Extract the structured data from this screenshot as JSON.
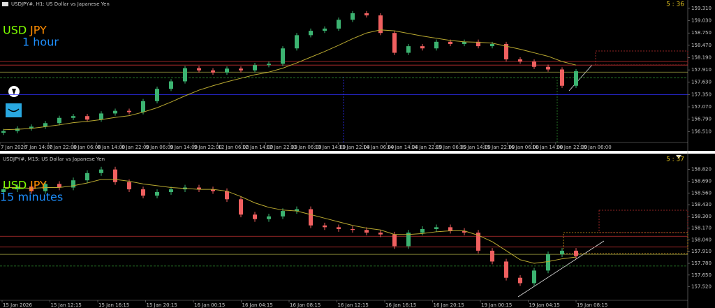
{
  "chart_data": [
    {
      "type": "candlestick",
      "title": "USDJPY#, H1:  US Dollar vs Japanese Yen",
      "timer": "5 : 36",
      "symbol_base": "USD",
      "symbol_quote": "JPY",
      "timeframe_label": "1 hour",
      "up_color": "#3cb371",
      "down_color": "#f06060",
      "ma_color": "#b8a830",
      "x_labels": [
        "7 Jan 2026",
        "7 Jan 14:00",
        "7 Jan 22:00",
        "8 Jan 06:00",
        "8 Jan 14:00",
        "8 Jan 22:00",
        "9 Jan 06:00",
        "9 Jan 14:00",
        "9 Jan 22:00",
        "12 Jan 06:00",
        "12 Jan 14:00",
        "12 Jan 22:00",
        "13 Jan 06:00",
        "13 Jan 14:00",
        "13 Jan 22:00",
        "14 Jan 06:00",
        "14 Jan 14:00",
        "14 Jan 22:00",
        "15 Jan 06:00",
        "15 Jan 14:00",
        "15 Jan 22:00",
        "16 Jan 06:00",
        "16 Jan 14:00",
        "16 Jan 22:00",
        "19 Jan 06:00"
      ],
      "open": [
        156.48,
        156.52,
        156.58,
        156.62,
        156.7,
        156.82,
        156.86,
        156.78,
        156.92,
        156.98,
        156.95,
        157.2,
        157.48,
        157.65,
        157.95,
        157.9,
        157.85,
        157.94,
        157.9,
        158.02,
        158.05,
        158.4,
        158.7,
        158.8,
        158.85,
        159.05,
        159.2,
        159.15,
        158.75,
        158.3,
        158.45,
        158.4,
        158.55,
        158.5,
        158.55,
        158.45,
        158.5,
        158.15,
        158.1,
        157.98,
        157.92,
        157.55
      ],
      "high": [
        156.57,
        156.63,
        156.67,
        156.75,
        156.87,
        156.91,
        156.91,
        156.97,
        157.03,
        157.03,
        157.25,
        157.53,
        157.7,
        158.0,
        158.0,
        157.95,
        157.99,
        157.99,
        158.07,
        158.1,
        158.45,
        158.75,
        158.85,
        158.9,
        159.1,
        159.25,
        159.25,
        159.2,
        158.8,
        158.5,
        158.5,
        158.6,
        158.6,
        158.6,
        158.6,
        158.55,
        158.55,
        158.2,
        158.15,
        158.03,
        157.97,
        157.93
      ],
      "low": [
        156.43,
        156.47,
        156.53,
        156.57,
        156.65,
        156.77,
        156.73,
        156.73,
        156.87,
        156.9,
        156.9,
        157.15,
        157.43,
        157.6,
        157.85,
        157.8,
        157.8,
        157.85,
        157.85,
        157.97,
        158.0,
        158.35,
        158.65,
        158.75,
        158.8,
        159.0,
        159.1,
        158.7,
        158.25,
        158.25,
        158.35,
        158.35,
        158.45,
        158.45,
        158.4,
        158.4,
        158.1,
        158.05,
        157.93,
        157.87,
        157.5,
        157.5
      ],
      "close": [
        156.52,
        156.58,
        156.62,
        156.7,
        156.82,
        156.86,
        156.78,
        156.92,
        156.98,
        156.95,
        157.2,
        157.48,
        157.65,
        157.95,
        157.9,
        157.85,
        157.94,
        157.9,
        158.02,
        158.05,
        158.4,
        158.7,
        158.8,
        158.85,
        159.05,
        159.2,
        159.15,
        158.75,
        158.3,
        158.45,
        158.4,
        158.55,
        158.5,
        158.55,
        158.45,
        158.5,
        158.15,
        158.1,
        157.98,
        157.92,
        157.55,
        157.88
      ],
      "ma": [
        156.55,
        156.56,
        156.58,
        156.62,
        156.66,
        156.71,
        156.74,
        156.78,
        156.83,
        156.87,
        156.95,
        157.05,
        157.18,
        157.32,
        157.45,
        157.55,
        157.64,
        157.72,
        157.8,
        157.86,
        157.95,
        158.07,
        158.2,
        158.33,
        158.47,
        158.62,
        158.75,
        158.82,
        158.8,
        158.74,
        158.68,
        158.63,
        158.58,
        158.55,
        158.54,
        158.52,
        158.45,
        158.38,
        158.3,
        158.22,
        158.1,
        158.02
      ],
      "levels": [
        {
          "value": 158.1,
          "color": "#c03030",
          "style": "solid"
        },
        {
          "value": 158.02,
          "color": "#c03030",
          "style": "solid"
        },
        {
          "value": 157.86,
          "color": "#a0a040",
          "style": "solid"
        },
        {
          "value": 157.73,
          "color": "#2e8b2e",
          "style": "dashed"
        },
        {
          "value": 157.35,
          "color": "#3030ff",
          "style": "solid"
        }
      ],
      "ylim": [
        156.26,
        159.5
      ],
      "yticks": [
        {
          "value": 159.31,
          "label": "159.310"
        },
        {
          "value": 159.03,
          "label": "159.030"
        },
        {
          "value": 158.75,
          "label": "158.750"
        },
        {
          "value": 158.47,
          "label": "158.470"
        },
        {
          "value": 158.19,
          "label": "158.190"
        },
        {
          "value": 157.91,
          "label": "157.910"
        },
        {
          "value": 157.63,
          "label": "157.630"
        },
        {
          "value": 157.35,
          "label": "157.350"
        },
        {
          "value": 157.07,
          "label": "157.070"
        },
        {
          "value": 156.79,
          "label": "156.790"
        },
        {
          "value": 156.51,
          "label": "156.510"
        }
      ]
    },
    {
      "type": "candlestick",
      "title": "USDJPY#, M15:  US Dollar vs Japanese Yen",
      "timer": "5 : 37",
      "symbol_base": "USD",
      "symbol_quote": "JPY",
      "timeframe_label": "15 minutes",
      "up_color": "#3cb371",
      "down_color": "#f06060",
      "ma_color": "#b8a830",
      "x_labels": [
        "15 Jan 2026",
        "15 Jan 12:15",
        "15 Jan 16:15",
        "15 Jan 20:15",
        "16 Jan 00:15",
        "16 Jan 04:15",
        "16 Jan 08:15",
        "16 Jan 12:15",
        "16 Jan 16:15",
        "16 Jan 20:15",
        "19 Jan 00:15",
        "19 Jan 04:15",
        "19 Jan 08:15"
      ],
      "open": [
        158.57,
        158.6,
        158.63,
        158.58,
        158.66,
        158.62,
        158.7,
        158.78,
        158.82,
        158.68,
        158.6,
        158.53,
        158.57,
        158.6,
        158.62,
        158.6,
        158.58,
        158.49,
        158.32,
        158.27,
        158.3,
        158.36,
        158.38,
        158.2,
        158.18,
        158.16,
        158.15,
        158.12,
        158.1,
        157.97,
        158.12,
        158.16,
        158.18,
        158.14,
        158.12,
        157.92,
        157.8,
        157.62,
        157.56,
        157.7,
        157.88,
        157.92
      ],
      "high": [
        158.63,
        158.66,
        158.66,
        158.69,
        158.69,
        158.73,
        158.81,
        158.85,
        158.85,
        158.71,
        158.63,
        158.6,
        158.63,
        158.65,
        158.65,
        158.63,
        158.61,
        158.52,
        158.35,
        158.33,
        158.39,
        158.41,
        158.41,
        158.23,
        158.21,
        158.19,
        158.18,
        158.15,
        158.13,
        158.15,
        158.19,
        158.21,
        158.21,
        158.17,
        158.15,
        157.95,
        157.83,
        157.65,
        157.73,
        157.91,
        157.95,
        157.95
      ],
      "low": [
        158.54,
        158.57,
        158.55,
        158.55,
        158.59,
        158.59,
        158.67,
        158.75,
        158.65,
        158.57,
        158.5,
        158.5,
        158.54,
        158.57,
        158.57,
        158.55,
        158.46,
        158.29,
        158.24,
        158.24,
        158.27,
        158.33,
        158.17,
        158.15,
        158.13,
        158.12,
        158.09,
        158.07,
        157.94,
        157.94,
        158.09,
        158.13,
        158.11,
        158.09,
        157.89,
        157.77,
        157.59,
        157.53,
        157.53,
        157.67,
        157.85,
        157.83
      ],
      "close": [
        158.6,
        158.63,
        158.58,
        158.66,
        158.62,
        158.7,
        158.78,
        158.82,
        158.68,
        158.6,
        158.53,
        158.57,
        158.6,
        158.62,
        158.6,
        158.58,
        158.49,
        158.32,
        158.27,
        158.3,
        158.36,
        158.38,
        158.2,
        158.18,
        158.16,
        158.15,
        158.12,
        158.1,
        157.97,
        158.12,
        158.16,
        158.18,
        158.14,
        158.12,
        157.92,
        157.8,
        157.62,
        157.56,
        157.7,
        157.88,
        157.92,
        157.86
      ],
      "ma": [
        158.62,
        158.62,
        158.61,
        158.62,
        158.62,
        158.64,
        158.67,
        158.71,
        158.71,
        158.69,
        158.66,
        158.64,
        158.62,
        158.61,
        158.6,
        158.6,
        158.58,
        158.52,
        158.45,
        158.4,
        158.37,
        158.36,
        158.32,
        158.28,
        158.24,
        158.2,
        158.17,
        158.15,
        158.1,
        158.1,
        158.11,
        158.13,
        158.14,
        158.14,
        158.09,
        158.02,
        157.92,
        157.82,
        157.78,
        157.8,
        157.83,
        157.85
      ],
      "levels": [
        {
          "value": 158.08,
          "color": "#c03030",
          "style": "solid"
        },
        {
          "value": 157.96,
          "color": "#c03030",
          "style": "solid"
        },
        {
          "value": 157.88,
          "color": "#a0a040",
          "style": "solid"
        },
        {
          "value": 157.75,
          "color": "#2e8b2e",
          "style": "dashed"
        }
      ],
      "ylim": [
        157.37,
        158.98
      ],
      "yticks": [
        {
          "value": 158.82,
          "label": "158.820"
        },
        {
          "value": 158.69,
          "label": "158.690"
        },
        {
          "value": 158.56,
          "label": "158.560"
        },
        {
          "value": 158.43,
          "label": "158.430"
        },
        {
          "value": 158.3,
          "label": "158.300"
        },
        {
          "value": 158.17,
          "label": "158.170"
        },
        {
          "value": 158.04,
          "label": "158.040"
        },
        {
          "value": 157.91,
          "label": "157.910"
        },
        {
          "value": 157.78,
          "label": "157.780"
        },
        {
          "value": 157.65,
          "label": "157.650"
        },
        {
          "value": 157.52,
          "label": "157.520"
        }
      ]
    }
  ]
}
